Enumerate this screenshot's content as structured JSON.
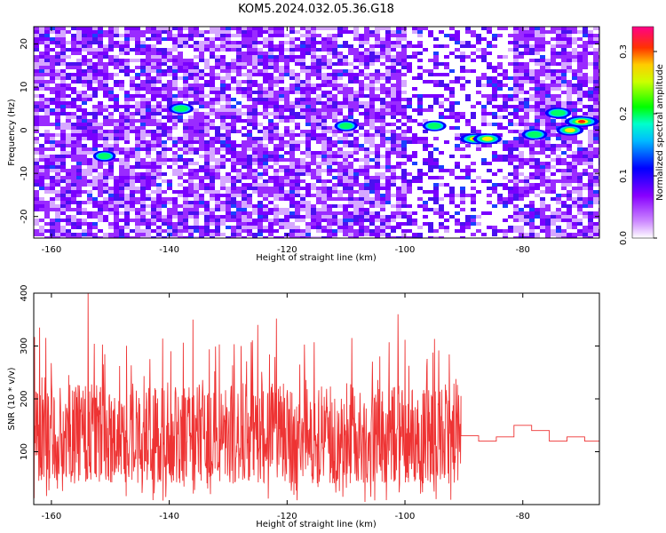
{
  "title": "KOM5.2024.032.05.36.G18",
  "chart_data": [
    {
      "type": "heatmap",
      "xlabel": "Height of straight line (km)",
      "ylabel": "Frequency (Hz)",
      "xlim": [
        -163,
        -67
      ],
      "ylim": [
        -25,
        24
      ],
      "xticks": [
        -160,
        -140,
        -120,
        -100,
        -80
      ],
      "yticks": [
        -20,
        -10,
        0,
        10,
        20
      ],
      "colorbar": {
        "label": "Normalized spectral amplitude",
        "range": [
          0.0,
          0.34
        ],
        "ticks": [
          0.0,
          0.1,
          0.2,
          0.3
        ],
        "colormap": [
          "#ffffff",
          "#9900ff",
          "#0000ff",
          "#00ffff",
          "#00ff00",
          "#ffff00",
          "#ff0000",
          "#ff00aa"
        ]
      },
      "hotspots": [
        {
          "x": -88,
          "y": -2,
          "value": 0.26
        },
        {
          "x": -86,
          "y": -2,
          "value": 0.2
        },
        {
          "x": -70,
          "y": 2,
          "value": 0.3
        },
        {
          "x": -72,
          "y": 0,
          "value": 0.18
        },
        {
          "x": -74,
          "y": 4,
          "value": 0.16
        },
        {
          "x": -78,
          "y": -1,
          "value": 0.15
        },
        {
          "x": -138,
          "y": 5,
          "value": 0.14
        },
        {
          "x": -95,
          "y": 1,
          "value": 0.12
        },
        {
          "x": -110,
          "y": 1,
          "value": 0.11
        },
        {
          "x": -151,
          "y": -6,
          "value": 0.1
        }
      ]
    },
    {
      "type": "line",
      "xlabel": "Height of straight line (km)",
      "ylabel": "SNR (10 * v/v)",
      "xlim": [
        -163,
        -67
      ],
      "ylim": [
        0,
        400
      ],
      "xticks": [
        -160,
        -140,
        -120,
        -100,
        -80
      ],
      "yticks": [
        100,
        200,
        300,
        400
      ],
      "color": "#ee3333",
      "noisy_region": {
        "x_start": -163,
        "x_end": -90.5,
        "typical_range": [
          40,
          230
        ],
        "peaks": [
          {
            "x": -153.8,
            "y": 400
          },
          {
            "x": -162,
            "y": 335
          },
          {
            "x": -101.2,
            "y": 360
          },
          {
            "x": -121.8,
            "y": 352
          },
          {
            "x": -125,
            "y": 340
          },
          {
            "x": -136,
            "y": 350
          }
        ]
      },
      "steps": [
        {
          "x0": -90.5,
          "x1": -87.5,
          "y": 130
        },
        {
          "x0": -87.5,
          "x1": -84.5,
          "y": 120
        },
        {
          "x0": -84.5,
          "x1": -81.5,
          "y": 128
        },
        {
          "x0": -81.5,
          "x1": -78.5,
          "y": 150
        },
        {
          "x0": -78.5,
          "x1": -75.5,
          "y": 140
        },
        {
          "x0": -75.5,
          "x1": -72.5,
          "y": 120
        },
        {
          "x0": -72.5,
          "x1": -69.5,
          "y": 128
        },
        {
          "x0": -69.5,
          "x1": -67,
          "y": 120
        }
      ]
    }
  ]
}
